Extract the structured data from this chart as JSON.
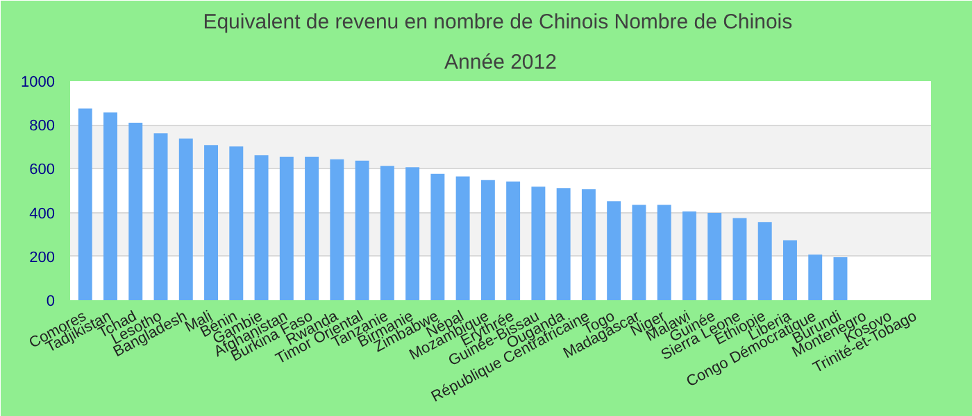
{
  "chart_data": {
    "type": "bar",
    "title": "Equivalent de revenu en nombre de Chinois  Nombre de Chinois",
    "subtitle": "Année 2012",
    "categories": [
      "Comores",
      "Tadjikistan",
      "Tchad",
      "Lesotho",
      "Bangladesh",
      "Mali",
      "Bénin",
      "Gambie",
      "Afghanistan",
      "Burkina Faso",
      "Rwanda",
      "Timor Oriental",
      "Tanzanie",
      "Birmanie",
      "Zimbabwe",
      "Népal",
      "Mozambique",
      "Erythrée",
      "Guinée-Bissau",
      "Ouganda",
      "République Centrafricaine",
      "Togo",
      "Madagascar",
      "Niger",
      "Malawi",
      "Guinée",
      "Sierra Leone",
      "Ethiopie",
      "Liberia",
      "Congo Démocratique",
      "Burundi",
      "Montenegro",
      "Kosovo",
      "Trinité-et-Tobago"
    ],
    "values": [
      875,
      857,
      810,
      762,
      738,
      708,
      702,
      661,
      655,
      655,
      643,
      637,
      613,
      607,
      577,
      565,
      548,
      542,
      518,
      512,
      506,
      452,
      435,
      435,
      405,
      399,
      375,
      357,
      274,
      208,
      196,
      null,
      null,
      null
    ],
    "color": "#64aaf5",
    "ylim": [
      0,
      1000
    ],
    "yticks": [
      0,
      200,
      400,
      600,
      800,
      1000
    ],
    "grid": "y"
  }
}
